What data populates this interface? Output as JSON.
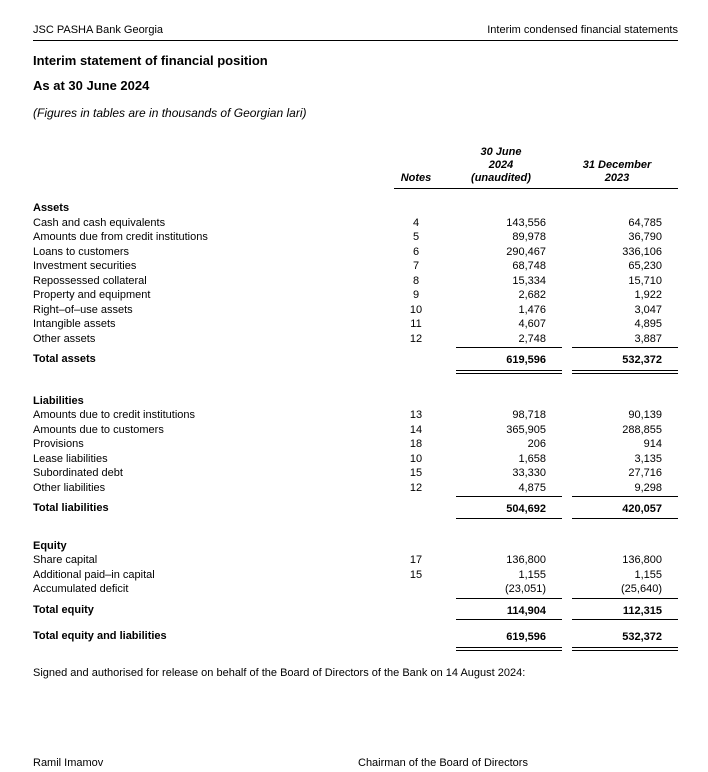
{
  "colors": {
    "text": "#000000",
    "background": "#ffffff",
    "rule": "#000000"
  },
  "page_header": {
    "left": "JSC PASHA Bank Georgia",
    "right": "Interim condensed financial statements"
  },
  "title": "Interim statement of financial position",
  "subtitle": "As at 30 June 2024",
  "units_note": "(Figures in tables are in thousands of Georgian lari)",
  "table": {
    "columns": {
      "notes": "Notes",
      "col1": [
        "30 June",
        "2024",
        "(unaudited)"
      ],
      "col2": [
        "31 December",
        "2023"
      ]
    },
    "sections": [
      {
        "header": "Assets",
        "rows": [
          {
            "label": "Cash and cash equivalents",
            "note": "4",
            "v1": "143,556",
            "v2": "64,785"
          },
          {
            "label": "Amounts due from credit institutions",
            "note": "5",
            "v1": "89,978",
            "v2": "36,790"
          },
          {
            "label": "Loans to customers",
            "note": "6",
            "v1": "290,467",
            "v2": "336,106"
          },
          {
            "label": "Investment securities",
            "note": "7",
            "v1": "68,748",
            "v2": "65,230"
          },
          {
            "label": "Repossessed collateral",
            "note": "8",
            "v1": "15,334",
            "v2": "15,710"
          },
          {
            "label": "Property and equipment",
            "note": "9",
            "v1": "2,682",
            "v2": "1,922"
          },
          {
            "label": "Right–of–use assets",
            "note": "10",
            "v1": "1,476",
            "v2": "3,047"
          },
          {
            "label": "Intangible assets",
            "note": "11",
            "v1": "4,607",
            "v2": "4,895"
          },
          {
            "label": "Other assets",
            "note": "12",
            "v1": "2,748",
            "v2": "3,887",
            "rule": "bottom"
          },
          {
            "label": "Total assets",
            "note": "",
            "v1": "619,596",
            "v2": "532,372",
            "bold": true,
            "rule": "double"
          }
        ]
      },
      {
        "header": "Liabilities",
        "rows": [
          {
            "label": "Amounts due to credit institutions",
            "note": "13",
            "v1": "98,718",
            "v2": "90,139"
          },
          {
            "label": "Amounts due to customers",
            "note": "14",
            "v1": "365,905",
            "v2": "288,855"
          },
          {
            "label": "Provisions",
            "note": "18",
            "v1": "206",
            "v2": "914"
          },
          {
            "label": "Lease liabilities",
            "note": "10",
            "v1": "1,658",
            "v2": "3,135"
          },
          {
            "label": "Subordinated debt",
            "note": "15",
            "v1": "33,330",
            "v2": "27,716"
          },
          {
            "label": "Other liabilities",
            "note": "12",
            "v1": "4,875",
            "v2": "9,298",
            "rule": "bottom"
          },
          {
            "label": "Total liabilities",
            "note": "",
            "v1": "504,692",
            "v2": "420,057",
            "bold": true,
            "rule": "bottom"
          }
        ]
      },
      {
        "header": "Equity",
        "rows": [
          {
            "label": "Share capital",
            "note": "17",
            "v1": "136,800",
            "v2": "136,800"
          },
          {
            "label": "Additional paid–in capital",
            "note": "15",
            "v1": "1,155",
            "v2": "1,155"
          },
          {
            "label": "Accumulated deficit",
            "note": "",
            "v1": "(23,051)",
            "v2": "(25,640)",
            "rule": "bottom"
          },
          {
            "label": "Total equity",
            "note": "",
            "v1": "114,904",
            "v2": "112,315",
            "bold": true,
            "rule": "bottom"
          },
          {
            "label": "Total equity and liabilities",
            "note": "",
            "v1": "619,596",
            "v2": "532,372",
            "bold": true,
            "rule": "double",
            "gap": true
          }
        ]
      }
    ]
  },
  "signoff": "Signed and authorised for release on behalf of the Board of Directors of the Bank on 14 August 2024:",
  "signature": {
    "name": "Ramil Imamov",
    "role": "Chairman of the Board of Directors"
  }
}
